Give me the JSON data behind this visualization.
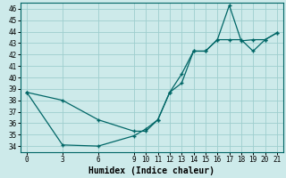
{
  "xlabel": "Humidex (Indice chaleur)",
  "background_color": "#cdeaea",
  "grid_color": "#9ecece",
  "line_color": "#006666",
  "ylim": [
    33.5,
    46.5
  ],
  "xlim": [
    -0.5,
    21.5
  ],
  "yticks": [
    34,
    35,
    36,
    37,
    38,
    39,
    40,
    41,
    42,
    43,
    44,
    45,
    46
  ],
  "xticks": [
    0,
    3,
    6,
    9,
    10,
    11,
    12,
    13,
    14,
    15,
    16,
    17,
    18,
    19,
    20,
    21
  ],
  "line1_x": [
    0,
    3,
    6,
    9,
    10,
    11,
    12,
    13,
    14,
    15,
    16,
    17,
    18,
    19,
    20,
    21
  ],
  "line1_y": [
    38.7,
    34.1,
    34.0,
    34.9,
    35.5,
    36.3,
    38.7,
    39.5,
    42.3,
    42.3,
    43.3,
    46.3,
    43.2,
    43.3,
    43.3,
    43.9
  ],
  "line2_x": [
    0,
    3,
    6,
    9,
    10,
    11,
    12,
    13,
    14,
    15,
    16,
    17,
    18,
    19,
    20,
    21
  ],
  "line2_y": [
    38.7,
    38.0,
    36.3,
    35.3,
    35.3,
    36.3,
    38.7,
    40.3,
    42.3,
    42.3,
    43.3,
    43.3,
    43.3,
    42.3,
    43.3,
    43.9
  ]
}
